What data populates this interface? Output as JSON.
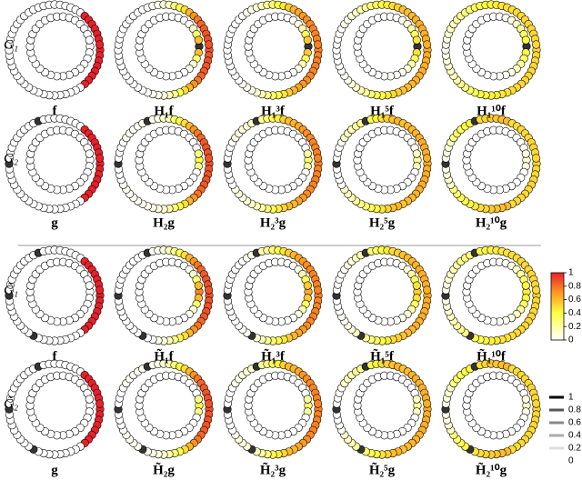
{
  "rows": [
    {
      "label": "G₁",
      "columns": [
        "f",
        "H₁f",
        "H₁³f",
        "H₁⁵f",
        "H₁¹⁰f"
      ]
    },
    {
      "label": "G₂",
      "columns": [
        "g",
        "H₂g",
        "H₂³g",
        "H₂⁵g",
        "H₂¹⁰g"
      ]
    },
    {
      "label": "G̃₁",
      "columns": [
        "f",
        "H̃₁f",
        "H̃₁³f",
        "H̃₁⁵f",
        "H̃₁¹⁰f"
      ]
    },
    {
      "label": "G̃₂",
      "columns": [
        "g",
        "H̃₂g",
        "H̃₂³g",
        "H̃₂⁵g",
        "H̃₂¹⁰g"
      ]
    }
  ],
  "colorbar": {
    "ticks": [
      "1",
      "0.8",
      "0.6",
      "0.4",
      "0.2",
      "0"
    ]
  },
  "grayscale_legend": {
    "ticks": [
      "1",
      "0.8",
      "0.6",
      "0.4",
      "0.2",
      "0"
    ]
  }
}
